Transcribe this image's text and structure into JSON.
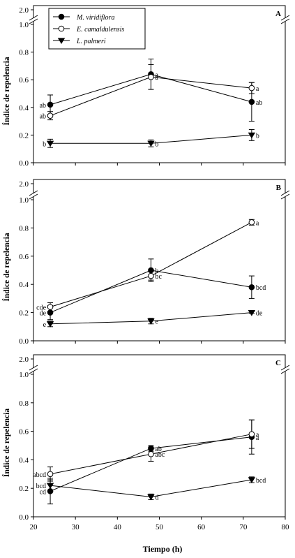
{
  "figure": {
    "xlabel": "Tiempo (h)",
    "ylabel": "Índice de repelencia",
    "x_ticks": [
      "20",
      "30",
      "40",
      "50",
      "60",
      "70",
      "80"
    ],
    "y_ticks_low": [
      "0.0",
      "0.2",
      "0.4",
      "0.6",
      "0.8",
      "1.0"
    ],
    "y_tick_high": "2.0"
  },
  "chart_data": [
    {
      "type": "line",
      "panel_label": "A",
      "xlabel": "",
      "ylabel": "Índice de repelencia",
      "xlim": [
        20,
        80
      ],
      "ylim": [
        0,
        1.0
      ],
      "y_break_tick": 2.0,
      "x": [
        24,
        48,
        72
      ],
      "legend": {
        "placement": "top-left",
        "entries": [
          "M. viridiflora",
          "E. camaldulensis",
          "L. palmeri"
        ]
      },
      "series": [
        {
          "name": "M. viridiflora",
          "marker": "filled-circle",
          "values": [
            0.42,
            0.64,
            0.44
          ],
          "error": [
            0.07,
            0.11,
            0.14
          ],
          "labels": [
            "ab",
            "a",
            "ab"
          ]
        },
        {
          "name": "E. camaldulensis",
          "marker": "open-circle",
          "values": [
            0.34,
            0.62,
            0.54
          ],
          "error": [
            0.03,
            0.09,
            0.04
          ],
          "labels": [
            "ab",
            "a",
            "a"
          ]
        },
        {
          "name": "L. palmeri",
          "marker": "filled-triangle",
          "values": [
            0.14,
            0.14,
            0.2
          ],
          "error": [
            0.03,
            0.025,
            0.04
          ],
          "labels": [
            "b",
            "b",
            "b"
          ]
        }
      ]
    },
    {
      "type": "line",
      "panel_label": "B",
      "xlabel": "",
      "ylabel": "Índice de repelencia",
      "xlim": [
        20,
        80
      ],
      "ylim": [
        0,
        1.0
      ],
      "y_break_tick": 2.0,
      "x": [
        24,
        48,
        72
      ],
      "series": [
        {
          "name": "M. viridiflora",
          "marker": "filled-circle",
          "values": [
            0.2,
            0.5,
            0.38
          ],
          "error": [
            0.05,
            0.08,
            0.08
          ],
          "labels": [
            "de",
            "b",
            "bcd"
          ]
        },
        {
          "name": "E. camaldulensis",
          "marker": "open-circle",
          "values": [
            0.24,
            0.46,
            0.84
          ],
          "error": [
            0.03,
            0.03,
            0.02
          ],
          "labels": [
            "cde",
            "bc",
            "a"
          ]
        },
        {
          "name": "L. palmeri",
          "marker": "filled-triangle",
          "values": [
            0.12,
            0.14,
            0.2
          ],
          "error": [
            0.02,
            0.02,
            0.005
          ],
          "labels": [
            "e",
            "e",
            "de"
          ]
        }
      ]
    },
    {
      "type": "line",
      "panel_label": "C",
      "xlabel": "Tiempo (h)",
      "ylabel": "Índice de repelencia",
      "xlim": [
        20,
        80
      ],
      "ylim": [
        0,
        1.0
      ],
      "y_break_tick": 2.0,
      "x": [
        24,
        48,
        72
      ],
      "series": [
        {
          "name": "M. viridiflora",
          "marker": "filled-circle",
          "values": [
            0.18,
            0.48,
            0.56
          ],
          "error": [
            0.09,
            0.02,
            0.12
          ],
          "labels": [
            "cd",
            "ab",
            "a"
          ]
        },
        {
          "name": "E. camaldulensis",
          "marker": "open-circle",
          "values": [
            0.3,
            0.44,
            0.58
          ],
          "error": [
            0.05,
            0.05,
            0.1
          ],
          "labels": [
            "abcd",
            "abc",
            "a"
          ]
        },
        {
          "name": "L. palmeri",
          "marker": "filled-triangle",
          "values": [
            0.22,
            0.14,
            0.26
          ],
          "error": [
            0.04,
            0.02,
            0.02
          ],
          "labels": [
            "bcd",
            "d",
            "bcd"
          ]
        }
      ]
    }
  ]
}
